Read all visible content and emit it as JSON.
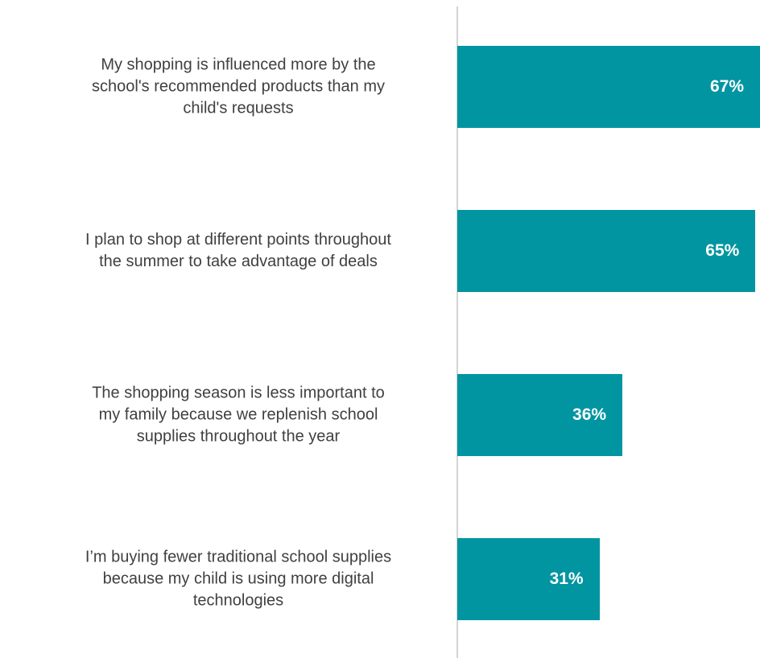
{
  "chart_data": {
    "type": "bar",
    "orientation": "horizontal",
    "categories": [
      "My shopping is influenced more by the\nschool's recommended products than my\nchild's requests",
      "I plan to shop at different points throughout\nthe summer to take advantage of deals",
      "The shopping season is less important to\nmy family because we replenish school\nsupplies throughout the year",
      "I’m buying fewer traditional school supplies\nbecause my child is using more digital\ntechnologies"
    ],
    "values": [
      67,
      65,
      36,
      31
    ],
    "value_labels": [
      "67%",
      "65%",
      "36%",
      "31%"
    ],
    "color": "#0095a1",
    "xlim": [
      0,
      66
    ]
  }
}
